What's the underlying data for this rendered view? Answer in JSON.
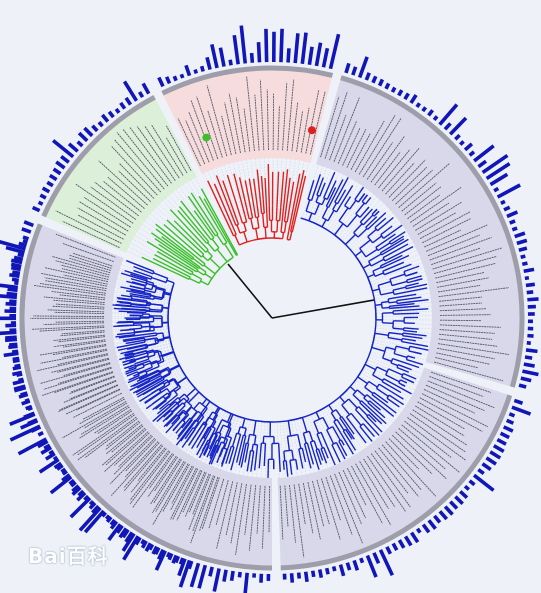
{
  "watermark": {
    "text": "Bai百科"
  },
  "colors": {
    "background": "#eef2f8",
    "blue_clade": "#1524c6",
    "red_clade": "#e0201e",
    "green_clade": "#3bbf2a",
    "root": "#111111",
    "band_blue": "#d9d8ea",
    "band_red": "#f6dcdc",
    "band_green": "#dcefd8",
    "outer_ring": "#9e9eaa",
    "bars": "#1016b8"
  },
  "tree": {
    "clades": [
      {
        "name": "blue",
        "color": "#1524c6",
        "band": "#d9d8ea",
        "start_deg": -252,
        "end_deg": 16
      },
      {
        "name": "green",
        "color": "#3bbf2a",
        "band": "#dcefd8",
        "start_deg": -156,
        "end_deg": -118
      },
      {
        "name": "red",
        "color": "#e0201e",
        "band": "#f6dcdc",
        "start_deg": -116,
        "end_deg": -76
      },
      {
        "name": "blue",
        "color": "#1524c6",
        "band": "#d9d8ea",
        "start_deg": -74,
        "end_deg": 16
      }
    ],
    "markers": [
      {
        "name": "green-marker",
        "color": "#3bbf2a",
        "angle_deg": -110
      },
      {
        "name": "red-marker",
        "color": "#e0201e",
        "angle_deg": -78
      }
    ]
  }
}
